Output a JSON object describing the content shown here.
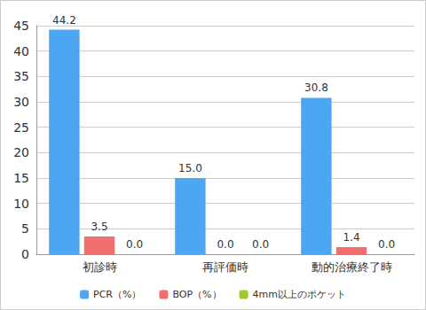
{
  "chart_data": {
    "type": "bar",
    "categories": [
      "初診時",
      "再評価時",
      "動的治療終了時"
    ],
    "series": [
      {
        "name": "PCR（%）",
        "color": "#4da6f2",
        "values": [
          44.2,
          15.0,
          30.8
        ],
        "value_labels": [
          "44.2",
          "15.0",
          "30.8"
        ]
      },
      {
        "name": "BOP（%）",
        "color": "#f26d6d",
        "values": [
          3.5,
          0.0,
          1.4
        ],
        "value_labels": [
          "3.5",
          "0.0",
          "1.4"
        ]
      },
      {
        "name": "4mm以上のポケット",
        "color": "#99cc33",
        "values": [
          0.0,
          0.0,
          0.0
        ],
        "value_labels": [
          "0.0",
          "0.0",
          "0.0"
        ]
      }
    ],
    "ylim": [
      0,
      45
    ],
    "yticks": [
      0,
      5,
      10,
      15,
      20,
      25,
      30,
      35,
      40,
      45
    ],
    "grid": true,
    "legend": "bottom",
    "data_labels": true
  }
}
